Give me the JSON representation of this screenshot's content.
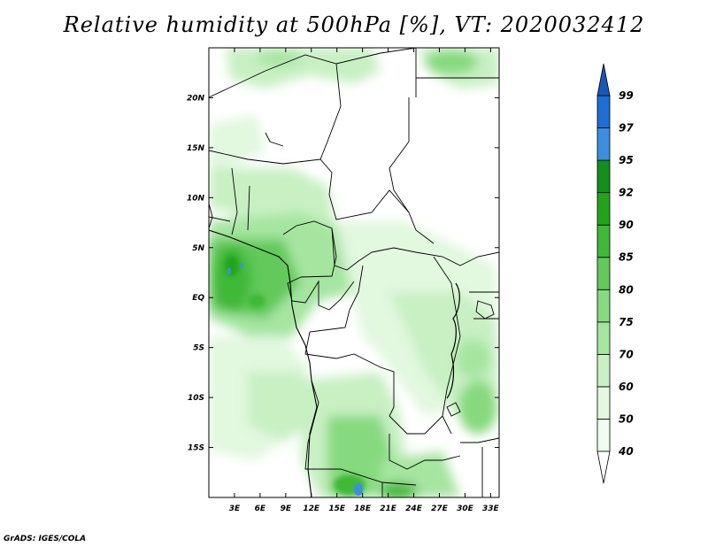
{
  "title": "Relative humidity at 500hPa [%], VT: 2020032412",
  "credit": "GrADS: IGES/COLA",
  "map": {
    "lon_range": [
      0,
      34
    ],
    "lat_range": [
      -20,
      25
    ],
    "lon_ticks": [
      "3E",
      "6E",
      "9E",
      "12E",
      "15E",
      "18E",
      "21E",
      "24E",
      "27E",
      "30E",
      "33E"
    ],
    "lat_ticks": [
      "20N",
      "15N",
      "10N",
      "5N",
      "EQ",
      "5S",
      "10S",
      "15S"
    ]
  },
  "colorbar": {
    "levels": [
      "40",
      "50",
      "60",
      "70",
      "75",
      "80",
      "85",
      "90",
      "92",
      "95",
      "97",
      "99"
    ],
    "colors": [
      "#f0fcef",
      "#e2f8df",
      "#c8f0c3",
      "#a6e5a0",
      "#86d97e",
      "#62c95a",
      "#40b838",
      "#23a31c",
      "#12901a",
      "#3e8ee0",
      "#1d6fd3",
      "#1857b8"
    ],
    "under_color": "#ffffff",
    "over_color": "#1857b8"
  }
}
